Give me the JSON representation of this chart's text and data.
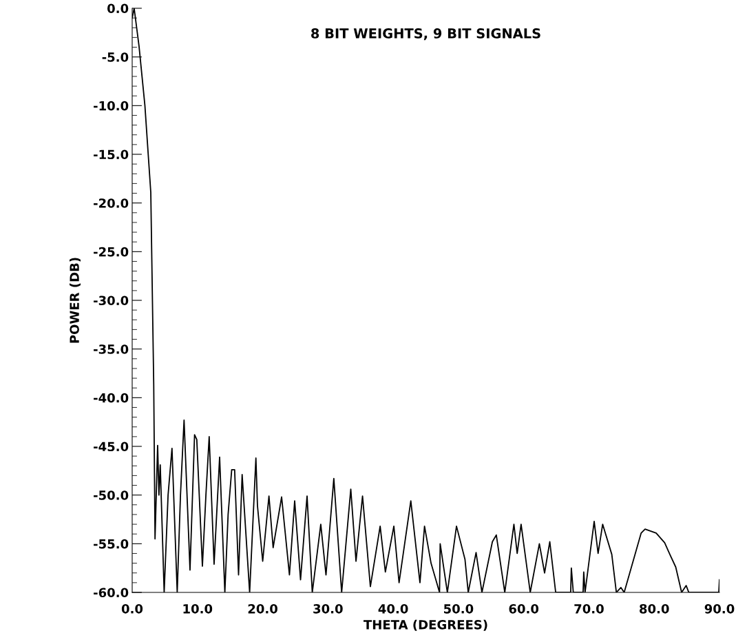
{
  "chart_data": {
    "type": "line",
    "title": "8 BIT WEIGHTS, 9 BIT SIGNALS",
    "xlabel": "THETA (DEGREES)",
    "ylabel": "POWER (DB)",
    "xlim": [
      0,
      90
    ],
    "ylim": [
      -60,
      0
    ],
    "xticks": [
      {
        "value": 0,
        "label": "0.0"
      },
      {
        "value": 10,
        "label": "10.0"
      },
      {
        "value": 20,
        "label": "20.0"
      },
      {
        "value": 30,
        "label": "30.0"
      },
      {
        "value": 40,
        "label": "40.0"
      },
      {
        "value": 50,
        "label": "50.0"
      },
      {
        "value": 60,
        "label": "60.0"
      },
      {
        "value": 70,
        "label": "70.0"
      },
      {
        "value": 80,
        "label": "80.0"
      },
      {
        "value": 90,
        "label": "90.0"
      }
    ],
    "yticks": [
      {
        "value": 0,
        "label": "0.0"
      },
      {
        "value": -5,
        "label": "-5.0"
      },
      {
        "value": -10,
        "label": "-10.0"
      },
      {
        "value": -15,
        "label": "-15.0"
      },
      {
        "value": -20,
        "label": "-20.0"
      },
      {
        "value": -25,
        "label": "-25.0"
      },
      {
        "value": -30,
        "label": "-30.0"
      },
      {
        "value": -35,
        "label": "-35.0"
      },
      {
        "value": -40,
        "label": "-40.0"
      },
      {
        "value": -45,
        "label": "-45.0"
      },
      {
        "value": -50,
        "label": "-50.0"
      },
      {
        "value": -55,
        "label": "-55.0"
      },
      {
        "value": -60,
        "label": "-60.0"
      }
    ],
    "grid": false,
    "legend": false,
    "marker": "none",
    "line_style": "solid",
    "series": [
      {
        "color": "#000000",
        "x": [
          0,
          0.3,
          1.05,
          1.95,
          2.85,
          3.3,
          3.5,
          3.9,
          4.1,
          4.3,
          4.9,
          5.5,
          6.1,
          6.9,
          7.4,
          7.95,
          8.86,
          9.56,
          9.9,
          10.76,
          11.3,
          11.8,
          12.55,
          13.4,
          14.2,
          14.7,
          15.25,
          15.7,
          16.3,
          16.85,
          18.0,
          18.96,
          19.2,
          20.0,
          20.96,
          21.6,
          22.9,
          24.1,
          24.9,
          25.8,
          26.8,
          27.6,
          28.9,
          29.7,
          30.9,
          32.1,
          33.5,
          34.3,
          35.3,
          36.5,
          38.0,
          38.8,
          40.1,
          40.9,
          42.7,
          44.1,
          44.8,
          45.8,
          47.1,
          47.2,
          48.3,
          49.7,
          51.0,
          51.5,
          52.7,
          53.6,
          55.2,
          55.8,
          57.1,
          58.5,
          59.0,
          59.6,
          61.0,
          62.4,
          63.2,
          64.0,
          64.9,
          67.2,
          67.3,
          67.6,
          69.1,
          69.2,
          69.4,
          70.8,
          71.4,
          72.1,
          73.5,
          74.2,
          74.9,
          75.4,
          78.0,
          78.6,
          80.3,
          81.6,
          82.4,
          83.3,
          84.2,
          84.9,
          85.3,
          89.9,
          90
        ],
        "values": [
          -1,
          0,
          -3.9,
          -10,
          -18.9,
          -38.6,
          -54.5,
          -44.9,
          -50,
          -46.9,
          -60,
          -50,
          -45.2,
          -60,
          -50,
          -42.3,
          -57.7,
          -43.8,
          -44.3,
          -57.3,
          -50,
          -44.0,
          -57.1,
          -46.1,
          -60,
          -52,
          -47.4,
          -47.4,
          -58.2,
          -47.9,
          -60,
          -46.2,
          -51.1,
          -56.8,
          -50.1,
          -55.4,
          -50.2,
          -58.2,
          -50.6,
          -58.7,
          -50.1,
          -60,
          -53.0,
          -58.2,
          -48.3,
          -60,
          -49.4,
          -56.8,
          -50.1,
          -59.4,
          -53.2,
          -57.9,
          -53.2,
          -59,
          -50.6,
          -59,
          -53.2,
          -57,
          -60,
          -55.0,
          -60,
          -53.2,
          -56.6,
          -60,
          -55.9,
          -60,
          -54.8,
          -54.1,
          -60,
          -53.0,
          -56,
          -53.0,
          -60,
          -55.0,
          -58,
          -54.8,
          -60,
          -60,
          -57.5,
          -60,
          -60,
          -57.9,
          -60,
          -52.7,
          -56,
          -53.0,
          -56.1,
          -60,
          -59.5,
          -60,
          -53.9,
          -53.5,
          -53.9,
          -54.9,
          -56.1,
          -57.4,
          -60,
          -59.3,
          -60,
          -60,
          -58.7
        ]
      }
    ]
  }
}
